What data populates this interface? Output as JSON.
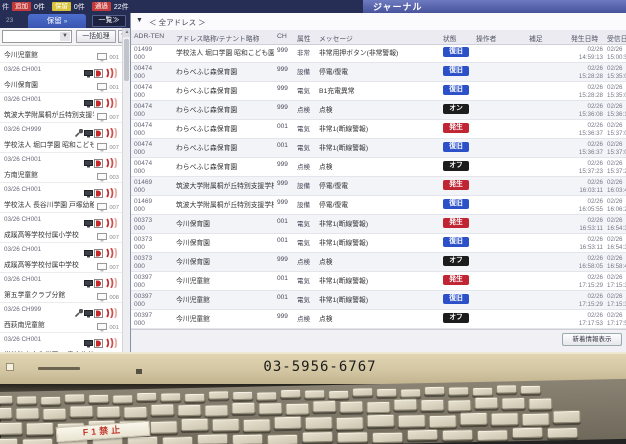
{
  "topbar": {
    "title": "ジャーナル",
    "leading": "件",
    "counters": [
      {
        "label": "追加",
        "count": "0件",
        "color": "#c43a3a"
      },
      {
        "label": "保留",
        "count": "0件",
        "color": "#d8c23c"
      },
      {
        "label": "通過",
        "count": "22件",
        "color": "#c43a3a"
      }
    ]
  },
  "sidebar": {
    "pending_count": "23",
    "tab_label": "保留",
    "tab_arrow": "»",
    "list_button": "一覧≫",
    "select_value": "",
    "batch_button": "一括処理",
    "sort_icon": "⇅",
    "items": [
      {
        "ch": null,
        "name": "今川児童館",
        "num": "001",
        "wrench": false
      },
      {
        "ch": "03/26 CH001",
        "name": "今川保育園",
        "num": "001",
        "wrench": false
      },
      {
        "ch": "03/26 CH001",
        "name": "筑波大学附属桐が丘特別支援学校",
        "num": "007",
        "wrench": false
      },
      {
        "ch": "03/26 CH999",
        "name": "学校法人 堀口学園 昭和こども園",
        "num": "007",
        "wrench": true
      },
      {
        "ch": "03/26 CH001",
        "name": "方南児童館",
        "num": "003",
        "wrench": false
      },
      {
        "ch": "03/26 CH001",
        "name": "学校法人 長谷川学園 戸塚幼稚園",
        "num": "007",
        "wrench": false
      },
      {
        "ch": "03/26 CH001",
        "name": "成蹊高等学校付属小学校",
        "num": "007",
        "wrench": false
      },
      {
        "ch": "03/26 CH001",
        "name": "成蹊高等学校付属中学校",
        "num": "007",
        "wrench": false
      },
      {
        "ch": "03/26 CH001",
        "name": "第五学童クラブ分館",
        "num": "008",
        "wrench": false
      },
      {
        "ch": "03/26 CH999",
        "name": "西荻南児童館",
        "num": "001",
        "wrench": true
      },
      {
        "ch": "03/26 CH001",
        "name": "学校法人文化学園 八雲文化幼稚園",
        "num": "007",
        "wrench": false
      }
    ]
  },
  "filter": {
    "icon": "funnel-icon",
    "label": "＜ 全アドレス ＞"
  },
  "table": {
    "columns": [
      "ADR-TEN",
      "アドレス略称/テナント略称",
      "CH",
      "属性",
      "メッセージ",
      "状態",
      "操作者",
      "補足",
      "発生日時",
      "受信日時"
    ],
    "rows": [
      {
        "adr": "01499",
        "sub": "000",
        "name": "学校法人 堀口学園 昭和こども園",
        "ch": "999",
        "attr": "非常",
        "msg": "非常用押ボタン(非常警報)",
        "status": "復旧",
        "operator": "",
        "note": "",
        "occ_date": "02/26",
        "occ_time": "14:59:13",
        "rcv_date": "02/26",
        "rcv_time": "15:00:51"
      },
      {
        "adr": "00474",
        "sub": "000",
        "name": "わらべふじ森保育園",
        "ch": "999",
        "attr": "設備",
        "msg": "停電/復電",
        "status": "復旧",
        "operator": "",
        "note": "",
        "occ_date": "02/26",
        "occ_time": "15:28:28",
        "rcv_date": "02/26",
        "rcv_time": "15:35:06"
      },
      {
        "adr": "00474",
        "sub": "000",
        "name": "わらべふじ森保育園",
        "ch": "999",
        "attr": "電気",
        "msg": "B1充電異常",
        "status": "復旧",
        "operator": "",
        "note": "",
        "occ_date": "02/26",
        "occ_time": "15:28:28",
        "rcv_date": "02/26",
        "rcv_time": "15:35:07"
      },
      {
        "adr": "00474",
        "sub": "000",
        "name": "わらべふじ森保育園",
        "ch": "999",
        "attr": "点検",
        "msg": "点検",
        "status": "オン",
        "operator": "",
        "note": "",
        "occ_date": "02/26",
        "occ_time": "15:36:08",
        "rcv_date": "02/26",
        "rcv_time": "15:36:10"
      },
      {
        "adr": "00474",
        "sub": "000",
        "name": "わらべふじ森保育園",
        "ch": "001",
        "attr": "電気",
        "msg": "非常1(断線警報)",
        "status": "発生",
        "operator": "",
        "note": "",
        "occ_date": "02/26",
        "occ_time": "15:36:37",
        "rcv_date": "02/26",
        "rcv_time": "15:37:02"
      },
      {
        "adr": "00474",
        "sub": "000",
        "name": "わらべふじ森保育園",
        "ch": "001",
        "attr": "電気",
        "msg": "非常1(断線警報)",
        "status": "復旧",
        "operator": "",
        "note": "",
        "occ_date": "02/26",
        "occ_time": "15:36:37",
        "rcv_date": "02/26",
        "rcv_time": "15:37:03"
      },
      {
        "adr": "00474",
        "sub": "000",
        "name": "わらべふじ森保育園",
        "ch": "999",
        "attr": "点検",
        "msg": "点検",
        "status": "オフ",
        "operator": "",
        "note": "",
        "occ_date": "02/26",
        "occ_time": "15:37:23",
        "rcv_date": "02/26",
        "rcv_time": "15:37:25"
      },
      {
        "adr": "01469",
        "sub": "000",
        "name": "筑波大学附属桐が丘特別支援学校",
        "ch": "999",
        "attr": "設備",
        "msg": "停電/復電",
        "status": "発生",
        "operator": "",
        "note": "",
        "occ_date": "02/26",
        "occ_time": "16:03:11",
        "rcv_date": "02/26",
        "rcv_time": "16:03:40"
      },
      {
        "adr": "01469",
        "sub": "000",
        "name": "筑波大学附属桐が丘特別支援学校",
        "ch": "999",
        "attr": "設備",
        "msg": "停電/復電",
        "status": "復旧",
        "operator": "",
        "note": "",
        "occ_date": "02/26",
        "occ_time": "16:05:55",
        "rcv_date": "02/26",
        "rcv_time": "16:06:20"
      },
      {
        "adr": "00373",
        "sub": "000",
        "name": "今川保育園",
        "ch": "001",
        "attr": "電気",
        "msg": "非常1(断線警報)",
        "status": "発生",
        "operator": "",
        "note": "",
        "occ_date": "02/26",
        "occ_time": "16:53:11",
        "rcv_date": "02/26",
        "rcv_time": "16:54:30"
      },
      {
        "adr": "00373",
        "sub": "000",
        "name": "今川保育園",
        "ch": "001",
        "attr": "電気",
        "msg": "非常1(断線警報)",
        "status": "復旧",
        "operator": "",
        "note": "",
        "occ_date": "02/26",
        "occ_time": "16:53:11",
        "rcv_date": "02/26",
        "rcv_time": "16:54:31"
      },
      {
        "adr": "00373",
        "sub": "000",
        "name": "今川保育園",
        "ch": "999",
        "attr": "点検",
        "msg": "点検",
        "status": "オフ",
        "operator": "",
        "note": "",
        "occ_date": "02/26",
        "occ_time": "16:58:05",
        "rcv_date": "02/26",
        "rcv_time": "16:58:40"
      },
      {
        "adr": "00397",
        "sub": "000",
        "name": "今川児童館",
        "ch": "001",
        "attr": "電気",
        "msg": "非常1(断線警報)",
        "status": "発生",
        "operator": "",
        "note": "",
        "occ_date": "02/26",
        "occ_time": "17:15:29",
        "rcv_date": "02/26",
        "rcv_time": "17:15:31"
      },
      {
        "adr": "00397",
        "sub": "000",
        "name": "今川児童館",
        "ch": "001",
        "attr": "電気",
        "msg": "非常1(断線警報)",
        "status": "復旧",
        "operator": "",
        "note": "",
        "occ_date": "02/26",
        "occ_time": "17:15:29",
        "rcv_date": "02/26",
        "rcv_time": "17:15:32"
      },
      {
        "adr": "00397",
        "sub": "000",
        "name": "今川児童館",
        "ch": "999",
        "attr": "点検",
        "msg": "点検",
        "status": "オフ",
        "operator": "",
        "note": "",
        "occ_date": "02/26",
        "occ_time": "17:17:53",
        "rcv_date": "02/26",
        "rcv_time": "17:17:54"
      }
    ],
    "refresh_button": "新着情報表示"
  },
  "status_colors": {
    "復旧": "#2b50c8",
    "発生": "#c02533",
    "オン": "#1c1c1c",
    "オフ": "#1c1c1c"
  },
  "bezel": {
    "phone_number": "03-5956-6767"
  },
  "keyboard": {
    "sticker": "F1禁止"
  }
}
